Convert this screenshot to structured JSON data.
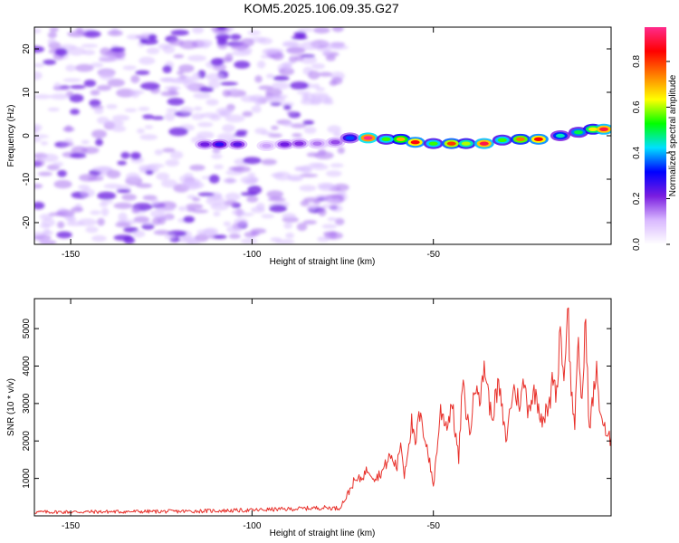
{
  "title": "KOM5.2025.106.09.35.G27",
  "chart_data": [
    {
      "type": "heatmap",
      "xlabel": "Height of straight line (km)",
      "ylabel": "Frequency (Hz)",
      "xlim": [
        -160,
        -1
      ],
      "ylim": [
        -25,
        25
      ],
      "xticks": [
        -150,
        -100,
        -50
      ],
      "yticks": [
        -20,
        -10,
        0,
        10,
        20
      ],
      "colorbar": {
        "label": "Normalized spectral amplitude",
        "range": [
          0,
          0.95
        ],
        "ticks": [
          "0.0",
          "0.2",
          "0.4",
          "0.6",
          "0.8"
        ],
        "colors": [
          "#ffffff",
          "#d9b8ff",
          "#7a1de0",
          "#0000ff",
          "#00e0ff",
          "#00ff00",
          "#ffff00",
          "#ff8000",
          "#ff0000",
          "#ff2b8c"
        ]
      },
      "noise_region_x": [
        -160,
        -75
      ],
      "signal_track": [
        {
          "x": -113,
          "y": -2.0,
          "a": 0.22
        },
        {
          "x": -109,
          "y": -2.0,
          "a": 0.28
        },
        {
          "x": -104,
          "y": -2.0,
          "a": 0.24
        },
        {
          "x": -96,
          "y": -2.3,
          "a": 0.12
        },
        {
          "x": -91,
          "y": -2.0,
          "a": 0.22
        },
        {
          "x": -87,
          "y": -1.8,
          "a": 0.2
        },
        {
          "x": -82,
          "y": -1.8,
          "a": 0.15
        },
        {
          "x": -77,
          "y": -1.5,
          "a": 0.18
        },
        {
          "x": -73,
          "y": -0.5,
          "a": 0.35
        },
        {
          "x": -68,
          "y": -0.5,
          "a": 0.95
        },
        {
          "x": -63,
          "y": -0.8,
          "a": 0.55
        },
        {
          "x": -59,
          "y": -0.8,
          "a": 0.7
        },
        {
          "x": -55,
          "y": -1.5,
          "a": 0.85
        },
        {
          "x": -50,
          "y": -1.8,
          "a": 0.55
        },
        {
          "x": -45,
          "y": -1.8,
          "a": 0.8
        },
        {
          "x": -41,
          "y": -1.8,
          "a": 0.6
        },
        {
          "x": -36,
          "y": -1.8,
          "a": 0.9
        },
        {
          "x": -31,
          "y": -1.0,
          "a": 0.55
        },
        {
          "x": -26,
          "y": -0.8,
          "a": 0.75
        },
        {
          "x": -21,
          "y": -0.8,
          "a": 0.85
        },
        {
          "x": -15,
          "y": 0.0,
          "a": 0.45
        },
        {
          "x": -10,
          "y": 0.8,
          "a": 0.5
        },
        {
          "x": -6,
          "y": 1.5,
          "a": 0.65
        },
        {
          "x": -3,
          "y": 1.5,
          "a": 0.9
        }
      ]
    },
    {
      "type": "line",
      "xlabel": "Height of straight line (km)",
      "ylabel": "SNR (10 * v/v)",
      "xlim": [
        -160,
        -1
      ],
      "ylim": [
        0,
        5800
      ],
      "xticks": [
        -150,
        -100,
        -50
      ],
      "yticks": [
        1000,
        2000,
        3000,
        4000,
        5000
      ],
      "color": "#e8302a",
      "series": [
        {
          "x": [
            -160,
            -140,
            -120,
            -100,
            -95,
            -90,
            -85,
            -80,
            -76,
            -74,
            -72,
            -70,
            -68,
            -66,
            -64,
            -62,
            -60,
            -59,
            -58,
            -56,
            -55,
            -54,
            -52,
            -50,
            -49,
            -48,
            -46,
            -45,
            -43,
            -42,
            -40,
            -38,
            -37,
            -36,
            -34,
            -32,
            -30,
            -28,
            -26,
            -25,
            -24,
            -22,
            -20,
            -18,
            -17,
            -16,
            -15,
            -14,
            -13,
            -12,
            -11,
            -10,
            -9,
            -8,
            -7,
            -6,
            -5,
            -4,
            -3,
            -2,
            -1
          ],
          "y": [
            100,
            110,
            120,
            150,
            170,
            180,
            200,
            220,
            200,
            500,
            900,
            1000,
            1250,
            1000,
            1200,
            1600,
            1300,
            2000,
            1100,
            2500,
            1800,
            2700,
            2000,
            800,
            1800,
            2800,
            2400,
            3100,
            1500,
            3500,
            2200,
            3800,
            3000,
            4100,
            2600,
            3500,
            2000,
            3400,
            3000,
            3600,
            2900,
            3300,
            2600,
            2900,
            3800,
            3200,
            5200,
            3500,
            5800,
            3300,
            2500,
            4500,
            3000,
            5300,
            2200,
            3200,
            3800,
            2800,
            2400,
            2000,
            2100
          ]
        }
      ]
    }
  ]
}
